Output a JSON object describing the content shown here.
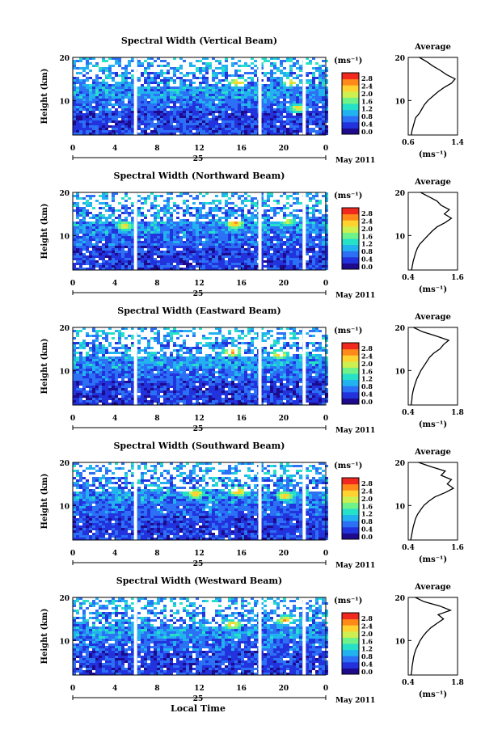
{
  "figure": {
    "xlabel": "Local Time",
    "day_label": "25",
    "month_label": "May 2011",
    "colorbar_unit": "(ms⁻¹)",
    "colorbar_ticks": [
      "2.8",
      "2.4",
      "2.0",
      "1.6",
      "1.2",
      "0.8",
      "0.4",
      "0.0"
    ],
    "colormap": [
      "#1e0a8c",
      "#2233dd",
      "#2b70f5",
      "#22b2f0",
      "#27e0c8",
      "#6ff28a",
      "#cdf050",
      "#ffd230",
      "#ff8a1a",
      "#f0281e"
    ],
    "gap_color": "#ffffff"
  },
  "chart_data": [
    {
      "type": "heatmap",
      "title": "Spectral Width (Vertical Beam)",
      "ylabel": "Height (km)",
      "x_ticks": [
        "0",
        "4",
        "8",
        "12",
        "16",
        "20",
        "0"
      ],
      "y_ticks": [
        "20",
        "10"
      ],
      "xlim": [
        0,
        24
      ],
      "ylim": [
        2,
        20
      ],
      "zlim": [
        0.0,
        3.0
      ],
      "data_gaps_hours": [
        [
          5.8,
          6.0
        ],
        [
          17.6,
          17.8
        ],
        [
          21.8,
          22.1
        ]
      ],
      "enhanced_regions": [
        {
          "time": 15.5,
          "height": 14.5,
          "value": 2.6
        },
        {
          "time": 20.5,
          "height": 14.5,
          "value": 2.4
        },
        {
          "time": 21.2,
          "height": 8.5,
          "value": 2.4
        }
      ],
      "average_profile": {
        "title": "Average",
        "xlabel": "(ms⁻¹)",
        "x_ticks": [
          "0.6",
          "1.4"
        ],
        "y_ticks": [
          "20",
          "10"
        ],
        "xlim": [
          0.6,
          1.4
        ],
        "ylim": [
          2,
          20
        ],
        "height": [
          2,
          3,
          4,
          5,
          6,
          7,
          8,
          9,
          10,
          11,
          12,
          13,
          14,
          15,
          16,
          17,
          18,
          19,
          20
        ],
        "width": [
          0.65,
          0.66,
          0.68,
          0.7,
          0.72,
          0.78,
          0.82,
          0.86,
          0.92,
          1.0,
          1.08,
          1.18,
          1.3,
          1.36,
          1.22,
          1.12,
          1.0,
          0.9,
          0.78
        ]
      }
    },
    {
      "type": "heatmap",
      "title": "Spectral Width (Northward Beam)",
      "ylabel": "Height (km)",
      "x_ticks": [
        "0",
        "4",
        "8",
        "12",
        "16",
        "20",
        "0"
      ],
      "y_ticks": [
        "20",
        "10"
      ],
      "xlim": [
        0,
        24
      ],
      "ylim": [
        2,
        20
      ],
      "zlim": [
        0.0,
        3.0
      ],
      "data_gaps_hours": [
        [
          5.8,
          6.0
        ],
        [
          17.6,
          17.8
        ],
        [
          21.8,
          22.1
        ]
      ],
      "enhanced_regions": [
        {
          "time": 4.8,
          "height": 12.5,
          "value": 2.4
        },
        {
          "time": 15.2,
          "height": 13.0,
          "value": 2.8
        },
        {
          "time": 20.2,
          "height": 13.5,
          "value": 2.2
        }
      ],
      "average_profile": {
        "title": "Average",
        "xlabel": "(ms⁻¹)",
        "x_ticks": [
          "0.4",
          "1.6"
        ],
        "y_ticks": [
          "20",
          "10"
        ],
        "xlim": [
          0.4,
          1.6
        ],
        "ylim": [
          2,
          20
        ],
        "height": [
          2,
          3,
          4,
          5,
          6,
          7,
          8,
          9,
          10,
          11,
          12,
          13,
          14,
          15,
          16,
          17,
          18,
          19,
          20
        ],
        "width": [
          0.48,
          0.5,
          0.52,
          0.55,
          0.58,
          0.62,
          0.68,
          0.78,
          0.88,
          0.98,
          1.1,
          1.3,
          1.45,
          1.28,
          1.4,
          1.2,
          1.1,
          0.9,
          0.7
        ]
      }
    },
    {
      "type": "heatmap",
      "title": "Spectral Width (Eastward Beam)",
      "ylabel": "Height (km)",
      "x_ticks": [
        "0",
        "4",
        "8",
        "12",
        "16",
        "20",
        "0"
      ],
      "y_ticks": [
        "20",
        "10"
      ],
      "xlim": [
        0,
        24
      ],
      "ylim": [
        2,
        20
      ],
      "zlim": [
        0.0,
        3.0
      ],
      "data_gaps_hours": [
        [
          5.8,
          6.0
        ],
        [
          17.6,
          17.8
        ],
        [
          21.8,
          22.1
        ]
      ],
      "enhanced_regions": [
        {
          "time": 15.0,
          "height": 14.5,
          "value": 2.8
        },
        {
          "time": 19.5,
          "height": 14.0,
          "value": 2.6
        }
      ],
      "average_profile": {
        "title": "Average",
        "xlabel": "(ms⁻¹)",
        "x_ticks": [
          "0.4",
          "1.8"
        ],
        "y_ticks": [
          "20",
          "10"
        ],
        "xlim": [
          0.4,
          1.8
        ],
        "ylim": [
          2,
          20
        ],
        "height": [
          2,
          3,
          4,
          5,
          6,
          7,
          8,
          9,
          10,
          11,
          12,
          13,
          14,
          15,
          16,
          17,
          18,
          19,
          20
        ],
        "width": [
          0.48,
          0.5,
          0.51,
          0.53,
          0.56,
          0.6,
          0.64,
          0.7,
          0.76,
          0.84,
          0.92,
          1.0,
          1.12,
          1.3,
          1.4,
          1.55,
          1.2,
          0.8,
          0.55
        ]
      }
    },
    {
      "type": "heatmap",
      "title": "Spectral Width (Southward Beam)",
      "ylabel": "Height (km)",
      "x_ticks": [
        "0",
        "4",
        "8",
        "12",
        "16",
        "20",
        "0"
      ],
      "y_ticks": [
        "20",
        "10"
      ],
      "xlim": [
        0,
        24
      ],
      "ylim": [
        2,
        20
      ],
      "zlim": [
        0.0,
        3.0
      ],
      "data_gaps_hours": [
        [
          5.8,
          6.0
        ],
        [
          17.6,
          17.8
        ],
        [
          21.8,
          22.1
        ]
      ],
      "enhanced_regions": [
        {
          "time": 11.5,
          "height": 13.0,
          "value": 2.6
        },
        {
          "time": 15.5,
          "height": 13.5,
          "value": 2.8
        },
        {
          "time": 20.0,
          "height": 12.5,
          "value": 2.6
        }
      ],
      "average_profile": {
        "title": "Average",
        "xlabel": "(ms⁻¹)",
        "x_ticks": [
          "0.4",
          "1.6"
        ],
        "y_ticks": [
          "20",
          "10"
        ],
        "xlim": [
          0.4,
          1.6
        ],
        "ylim": [
          2,
          20
        ],
        "height": [
          2,
          3,
          4,
          5,
          6,
          7,
          8,
          9,
          10,
          11,
          12,
          13,
          14,
          15,
          16,
          17,
          18,
          19,
          20
        ],
        "width": [
          0.46,
          0.48,
          0.5,
          0.52,
          0.55,
          0.58,
          0.63,
          0.7,
          0.78,
          0.9,
          1.05,
          1.3,
          1.5,
          1.35,
          1.45,
          1.2,
          1.3,
          0.95,
          0.65
        ]
      }
    },
    {
      "type": "heatmap",
      "title": "Spectral Width (Westward Beam)",
      "ylabel": "Height (km)",
      "x_ticks": [
        "0",
        "4",
        "8",
        "12",
        "16",
        "20",
        "0"
      ],
      "y_ticks": [
        "20",
        "10"
      ],
      "xlim": [
        0,
        24
      ],
      "ylim": [
        2,
        20
      ],
      "zlim": [
        0.0,
        3.0
      ],
      "data_gaps_hours": [
        [
          5.8,
          6.0
        ],
        [
          17.6,
          17.8
        ],
        [
          21.8,
          22.1
        ]
      ],
      "enhanced_regions": [
        {
          "time": 15.0,
          "height": 14.0,
          "value": 2.6
        },
        {
          "time": 20.0,
          "height": 15.0,
          "value": 2.6
        }
      ],
      "average_profile": {
        "title": "Average",
        "xlabel": "(ms⁻¹)",
        "x_ticks": [
          "0.4",
          "1.8"
        ],
        "y_ticks": [
          "20",
          "10"
        ],
        "xlim": [
          0.4,
          1.8
        ],
        "ylim": [
          2,
          20
        ],
        "height": [
          2,
          3,
          4,
          5,
          6,
          7,
          8,
          9,
          10,
          11,
          12,
          13,
          14,
          15,
          16,
          17,
          18,
          19,
          20
        ],
        "width": [
          0.48,
          0.5,
          0.51,
          0.53,
          0.55,
          0.58,
          0.62,
          0.68,
          0.74,
          0.82,
          0.92,
          1.05,
          1.22,
          1.4,
          1.25,
          1.6,
          1.3,
          0.85,
          0.6
        ]
      }
    }
  ]
}
